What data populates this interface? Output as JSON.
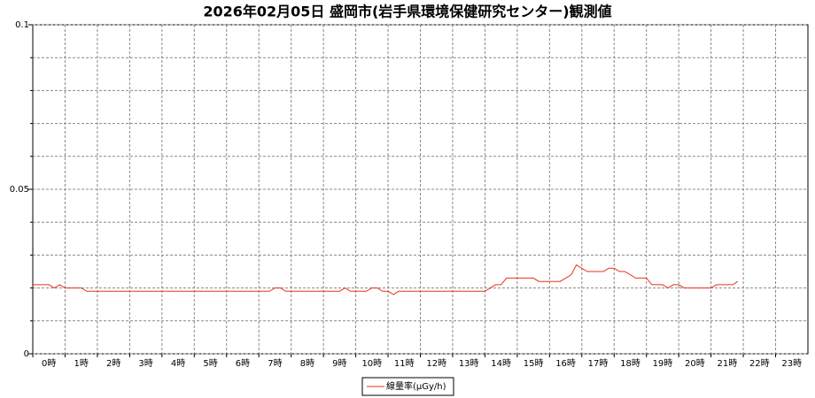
{
  "chart_data": {
    "type": "line",
    "title": "2026年02月05日 盛岡市(岩手県環境保健研究センター)観測値",
    "x": [
      0,
      0.17,
      0.33,
      0.5,
      0.67,
      0.83,
      1,
      1.17,
      1.33,
      1.5,
      1.67,
      1.83,
      2,
      2.17,
      2.33,
      2.5,
      2.67,
      2.83,
      3,
      3.17,
      3.33,
      3.5,
      3.67,
      3.83,
      4,
      4.17,
      4.33,
      4.5,
      4.67,
      4.83,
      5,
      5.17,
      5.33,
      5.5,
      5.67,
      5.83,
      6,
      6.17,
      6.33,
      6.5,
      6.67,
      6.83,
      7,
      7.17,
      7.33,
      7.5,
      7.67,
      7.83,
      8,
      8.17,
      8.33,
      8.5,
      8.67,
      8.83,
      9,
      9.17,
      9.33,
      9.5,
      9.67,
      9.83,
      10,
      10.17,
      10.33,
      10.5,
      10.67,
      10.83,
      11,
      11.17,
      11.33,
      11.5,
      11.67,
      11.83,
      12,
      12.17,
      12.33,
      12.5,
      12.67,
      12.83,
      13,
      13.17,
      13.33,
      13.5,
      13.67,
      13.83,
      14,
      14.17,
      14.33,
      14.5,
      14.67,
      14.83,
      15,
      15.17,
      15.33,
      15.5,
      15.67,
      15.83,
      16,
      16.17,
      16.33,
      16.5,
      16.67,
      16.83,
      17,
      17.17,
      17.33,
      17.5,
      17.67,
      17.83,
      18,
      18.17,
      18.33,
      18.5,
      18.67,
      18.83,
      19,
      19.17,
      19.33,
      19.5,
      19.67,
      19.83,
      20,
      20.17,
      20.33,
      20.5,
      20.67,
      20.83,
      21,
      21.17,
      21.33,
      21.5,
      21.67,
      21.83
    ],
    "series": [
      {
        "name": "線量率(μGy/h)",
        "color": "#e8321e",
        "values": [
          0.021,
          0.021,
          0.021,
          0.021,
          0.02,
          0.021,
          0.02,
          0.02,
          0.02,
          0.02,
          0.019,
          0.019,
          0.019,
          0.019,
          0.019,
          0.019,
          0.019,
          0.019,
          0.019,
          0.019,
          0.019,
          0.019,
          0.019,
          0.019,
          0.019,
          0.019,
          0.019,
          0.019,
          0.019,
          0.019,
          0.019,
          0.019,
          0.019,
          0.019,
          0.019,
          0.019,
          0.019,
          0.019,
          0.019,
          0.019,
          0.019,
          0.019,
          0.019,
          0.019,
          0.019,
          0.02,
          0.02,
          0.019,
          0.019,
          0.019,
          0.019,
          0.019,
          0.019,
          0.019,
          0.019,
          0.019,
          0.019,
          0.019,
          0.02,
          0.019,
          0.019,
          0.019,
          0.019,
          0.02,
          0.02,
          0.019,
          0.019,
          0.018,
          0.019,
          0.019,
          0.019,
          0.019,
          0.019,
          0.019,
          0.019,
          0.019,
          0.019,
          0.019,
          0.019,
          0.019,
          0.019,
          0.019,
          0.019,
          0.019,
          0.019,
          0.02,
          0.021,
          0.021,
          0.023,
          0.023,
          0.023,
          0.023,
          0.023,
          0.023,
          0.022,
          0.022,
          0.022,
          0.022,
          0.022,
          0.023,
          0.024,
          0.027,
          0.026,
          0.025,
          0.025,
          0.025,
          0.025,
          0.026,
          0.026,
          0.025,
          0.025,
          0.024,
          0.023,
          0.023,
          0.023,
          0.021,
          0.021,
          0.021,
          0.02,
          0.021,
          0.021,
          0.02,
          0.02,
          0.02,
          0.02,
          0.02,
          0.02,
          0.021,
          0.021,
          0.021,
          0.021,
          0.022
        ]
      }
    ],
    "xlim": [
      0,
      24
    ],
    "xticks": [
      {
        "value": 0,
        "label": "0時"
      },
      {
        "value": 1,
        "label": "1時"
      },
      {
        "value": 2,
        "label": "2時"
      },
      {
        "value": 3,
        "label": "3時"
      },
      {
        "value": 4,
        "label": "4時"
      },
      {
        "value": 5,
        "label": "5時"
      },
      {
        "value": 6,
        "label": "6時"
      },
      {
        "value": 7,
        "label": "7時"
      },
      {
        "value": 8,
        "label": "8時"
      },
      {
        "value": 9,
        "label": "9時"
      },
      {
        "value": 10,
        "label": "10時"
      },
      {
        "value": 11,
        "label": "11時"
      },
      {
        "value": 12,
        "label": "12時"
      },
      {
        "value": 13,
        "label": "13時"
      },
      {
        "value": 14,
        "label": "14時"
      },
      {
        "value": 15,
        "label": "15時"
      },
      {
        "value": 16,
        "label": "16時"
      },
      {
        "value": 17,
        "label": "17時"
      },
      {
        "value": 18,
        "label": "18時"
      },
      {
        "value": 19,
        "label": "19時"
      },
      {
        "value": 20,
        "label": "20時"
      },
      {
        "value": 21,
        "label": "21時"
      },
      {
        "value": 22,
        "label": "22時"
      },
      {
        "value": 23,
        "label": "23時"
      }
    ],
    "ylim": [
      0,
      0.1
    ],
    "yticks": [
      0,
      0.05,
      0.1
    ],
    "minor_yticks": [
      0.01,
      0.02,
      0.03,
      0.04,
      0.06,
      0.07,
      0.08,
      0.09
    ],
    "grid": true
  }
}
